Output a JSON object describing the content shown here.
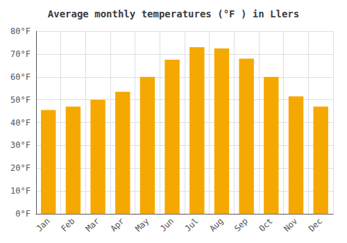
{
  "chart_data": {
    "type": "bar",
    "title": "Average monthly temperatures (°F ) in Llers",
    "categories": [
      "Jan",
      "Feb",
      "Mar",
      "Apr",
      "May",
      "Jun",
      "Jul",
      "Aug",
      "Sep",
      "Oct",
      "Nov",
      "Dec"
    ],
    "values": [
      45.5,
      47.0,
      50.0,
      53.5,
      60.0,
      67.5,
      73.0,
      72.5,
      68.0,
      60.0,
      51.5,
      47.0
    ],
    "color": "#F5A800",
    "ylim": [
      0,
      80
    ],
    "yticks": [
      {
        "value": 0,
        "label": "0°F"
      },
      {
        "value": 10,
        "label": "10°F"
      },
      {
        "value": 20,
        "label": "20°F"
      },
      {
        "value": 30,
        "label": "30°F"
      },
      {
        "value": 40,
        "label": "40°F"
      },
      {
        "value": 50,
        "label": "50°F"
      },
      {
        "value": 60,
        "label": "60°F"
      },
      {
        "value": 70,
        "label": "70°F"
      },
      {
        "value": 80,
        "label": "80°F"
      }
    ],
    "grid": true
  }
}
